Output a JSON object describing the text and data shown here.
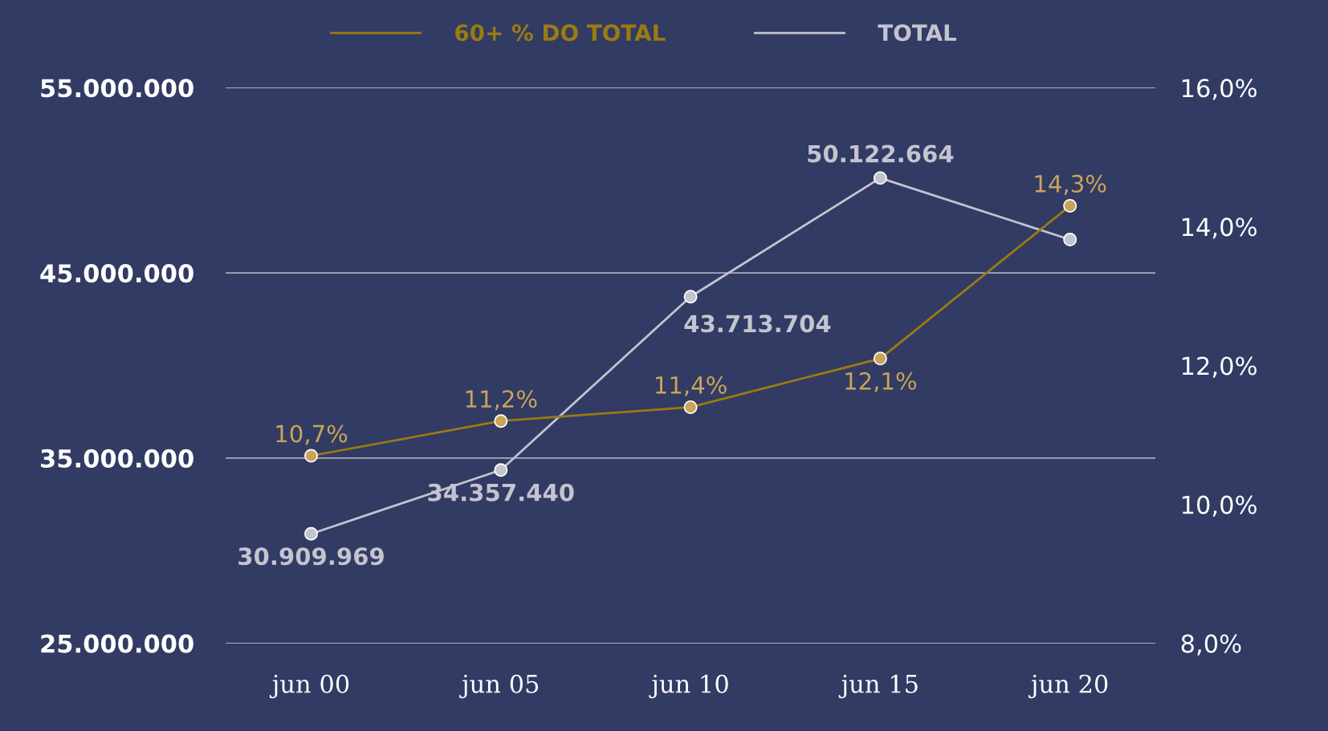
{
  "chart_data": {
    "type": "line",
    "categories": [
      "jun 00",
      "jun 05",
      "jun 10",
      "jun 15",
      "jun 20"
    ],
    "series": [
      {
        "name": "60+ % DO TOTAL",
        "color": "#9a7b12",
        "axis": "y2",
        "values": [
          10.7,
          11.2,
          11.4,
          12.1,
          14.3
        ],
        "value_labels": [
          "10,7%",
          "11,2%",
          "11,4%",
          "12,1%",
          "14,3%"
        ]
      },
      {
        "name": "TOTAL",
        "color": "#c4c4d0",
        "values": [
          30909969,
          34357440,
          43713704,
          50122664,
          46800000
        ],
        "value_labels": [
          "30.909.969",
          "34.357.440",
          "43.713.704",
          "50.122.664",
          null
        ]
      }
    ],
    "ylim": [
      25000000,
      55000000
    ],
    "yticks": [
      {
        "value": 25000000,
        "label": "25.000.000"
      },
      {
        "value": 35000000,
        "label": "35.000.000"
      },
      {
        "value": 45000000,
        "label": "45.000.000"
      },
      {
        "value": 55000000,
        "label": "55.000.000"
      }
    ],
    "y2lim": [
      8,
      16
    ],
    "y2ticks": [
      {
        "value": 8,
        "label": "8,0%"
      },
      {
        "value": 10,
        "label": "10,0%"
      },
      {
        "value": 12,
        "label": "12,0%"
      },
      {
        "value": 14,
        "label": "14,0%"
      },
      {
        "value": 16,
        "label": "16,0%"
      }
    ],
    "grid": "y",
    "legend": "top",
    "marker": "circle",
    "line_style": "solid"
  }
}
